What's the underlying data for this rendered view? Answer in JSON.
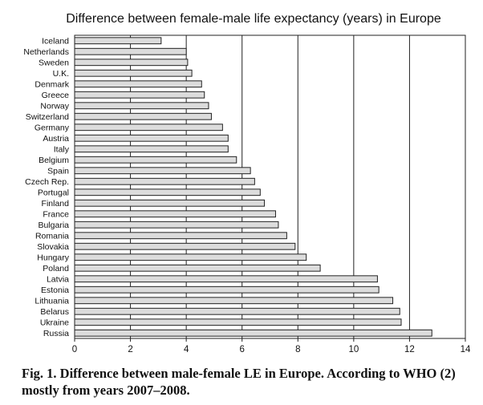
{
  "chart_data": {
    "type": "bar",
    "orientation": "horizontal",
    "title": "Difference between female-male life expectancy (years) in Europe",
    "xlabel": "",
    "ylabel": "",
    "xlim": [
      0,
      14
    ],
    "xticks": [
      0,
      2,
      4,
      6,
      8,
      10,
      12,
      14
    ],
    "grid": "vertical",
    "categories": [
      "Iceland",
      "Netherlands",
      "Sweden",
      "U.K.",
      "Denmark",
      "Greece",
      "Norway",
      "Switzerland",
      "Germany",
      "Austria",
      "Italy",
      "Belgium",
      "Spain",
      "Czech Rep.",
      "Portugal",
      "Finland",
      "France",
      "Bulgaria",
      "Romania",
      "Slovakia",
      "Hungary",
      "Poland",
      "Latvia",
      "Estonia",
      "Lithuania",
      "Belarus",
      "Ukraine",
      "Russia"
    ],
    "values": [
      3.1,
      4.0,
      4.05,
      4.2,
      4.55,
      4.65,
      4.8,
      4.9,
      5.3,
      5.5,
      5.5,
      5.8,
      6.3,
      6.45,
      6.65,
      6.8,
      7.2,
      7.3,
      7.6,
      7.9,
      8.3,
      8.8,
      10.85,
      10.9,
      11.4,
      11.65,
      11.7,
      12.8
    ],
    "bar_color": "#dcdcdc"
  },
  "caption": "Fig. 1. Difference between male-female LE in Europe. According to WHO (2) mostly from years 2007–2008."
}
